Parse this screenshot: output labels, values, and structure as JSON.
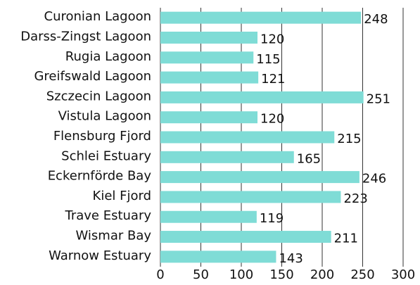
{
  "chart_data": {
    "type": "barh",
    "categories": [
      "Curonian Lagoon",
      "Darss-Zingst Lagoon",
      "Rugia Lagoon",
      "Greifswald Lagoon",
      "Szczecin Lagoon",
      "Vistula Lagoon",
      "Flensburg Fjord",
      "Schlei Estuary",
      "Eckernförde Bay",
      "Kiel Fjord",
      "Trave Estuary",
      "Wismar Bay",
      "Warnow Estuary"
    ],
    "values": [
      248,
      120,
      115,
      121,
      251,
      120,
      215,
      165,
      246,
      223,
      119,
      211,
      143
    ],
    "color": "#7fdcd6",
    "xlim": [
      0,
      300
    ],
    "xticks": [
      0,
      50,
      100,
      150,
      200,
      250,
      300
    ],
    "grid": true
  }
}
